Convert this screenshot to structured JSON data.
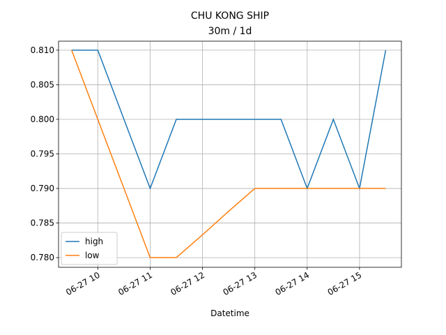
{
  "chart_data": {
    "type": "line",
    "title": "CHU KONG SHIP",
    "subtitle": "30m / 1d",
    "x_label": "Datetime",
    "x": [
      9.5,
      10,
      10.5,
      11,
      11.5,
      12,
      12.5,
      13,
      13.5,
      14,
      14.5,
      15,
      15.5
    ],
    "series": [
      {
        "name": "high",
        "color": "#1f77b4",
        "values": [
          0.81,
          0.81,
          0.8,
          0.79,
          0.8,
          0.8,
          0.8,
          0.8,
          0.8,
          0.79,
          0.8,
          0.79,
          0.81
        ]
      },
      {
        "name": "low",
        "color": "#ff7f0e",
        "values": [
          0.81,
          0.8,
          0.79,
          0.78,
          0.78,
          0.7833,
          0.7867,
          0.79,
          0.79,
          0.79,
          0.79,
          0.79,
          0.79
        ]
      }
    ],
    "xlim": [
      9.25,
      15.8
    ],
    "xticks": [
      {
        "value": 10,
        "label": "06-27 10"
      },
      {
        "value": 11,
        "label": "06-27 11"
      },
      {
        "value": 12,
        "label": "06-27 12"
      },
      {
        "value": 13,
        "label": "06-27 13"
      },
      {
        "value": 14,
        "label": "06-27 14"
      },
      {
        "value": 15,
        "label": "06-27 15"
      }
    ],
    "ylim": [
      0.7786,
      0.8113
    ],
    "yticks": [
      {
        "value": 0.78,
        "label": "0.780"
      },
      {
        "value": 0.785,
        "label": "0.785"
      },
      {
        "value": 0.79,
        "label": "0.790"
      },
      {
        "value": 0.795,
        "label": "0.795"
      },
      {
        "value": 0.8,
        "label": "0.800"
      },
      {
        "value": 0.805,
        "label": "0.805"
      },
      {
        "value": 0.81,
        "label": "0.810"
      }
    ],
    "grid": true,
    "legend": "lower left"
  }
}
